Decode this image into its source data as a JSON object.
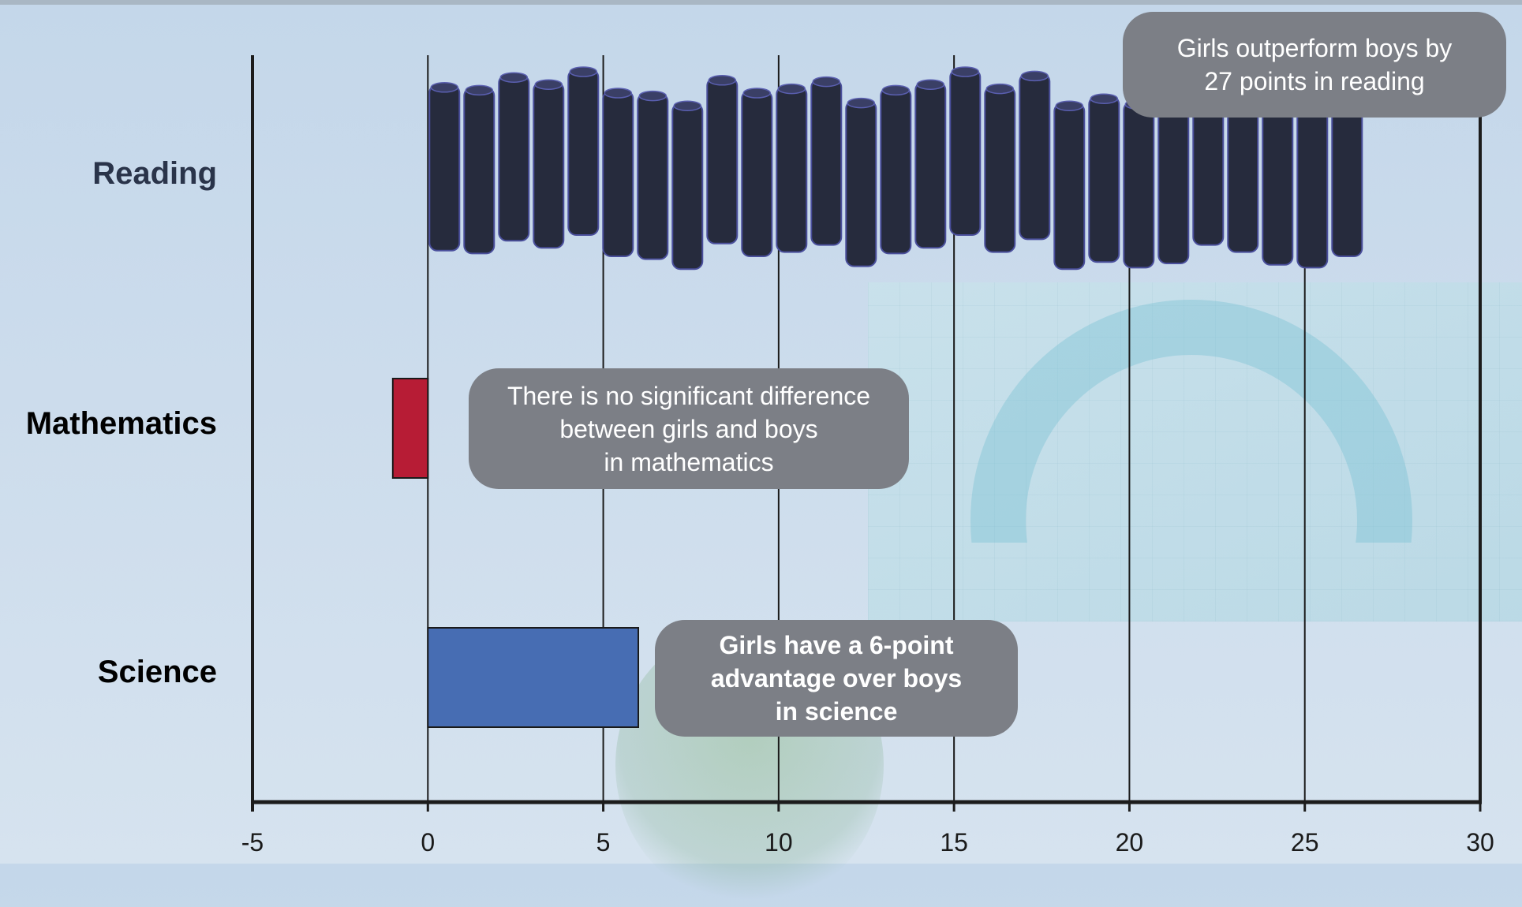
{
  "chart_data": {
    "type": "bar",
    "orientation": "horizontal",
    "categories": [
      "Reading",
      "Mathematics",
      "Science"
    ],
    "values": [
      27,
      -1,
      6
    ],
    "xlim": [
      -5,
      30
    ],
    "xticks": [
      -5,
      0,
      5,
      10,
      15,
      20,
      25,
      30
    ],
    "title": "",
    "xlabel": "",
    "ylabel": "",
    "grid": "vertical",
    "bar_colors": [
      "#262b3d",
      "#b71c35",
      "#476db3"
    ],
    "category_label_colors": [
      "#2a344a",
      "#000000",
      "#000000"
    ],
    "annotations": [
      "Girls outperform boys by\n27 points in reading",
      "There is no significant difference\nbetween girls and boys\nin mathematics",
      "Girls have a 6-point\nadvantage over boys\nin science"
    ]
  }
}
